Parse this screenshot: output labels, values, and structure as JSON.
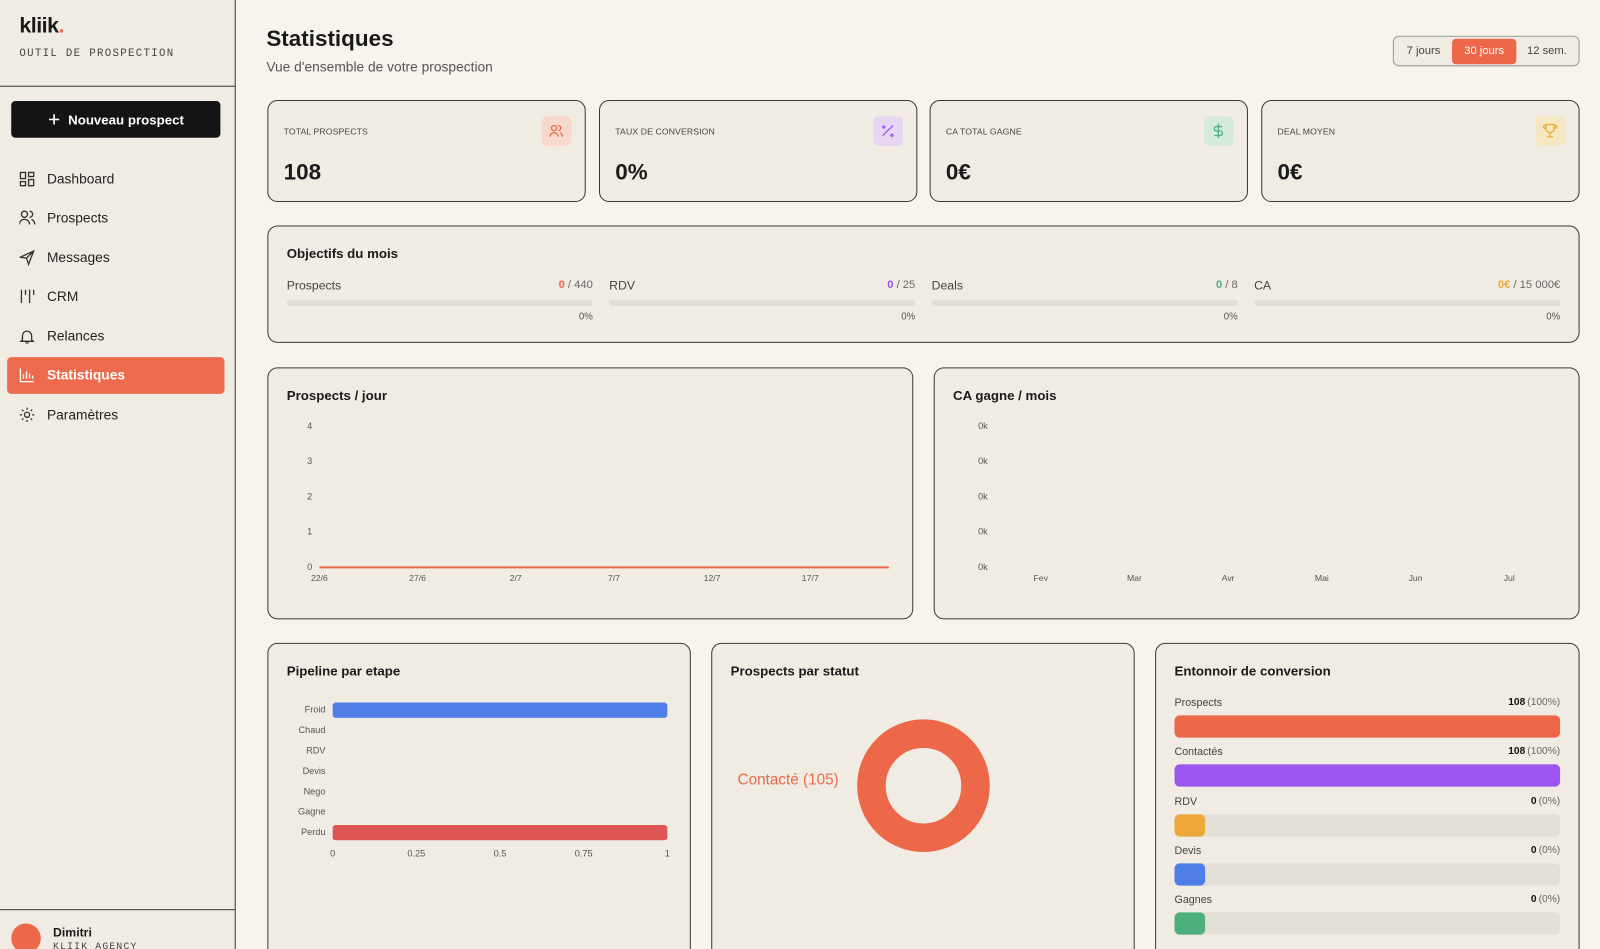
{
  "sidebar": {
    "logo": "kliik",
    "logo_dot": ".",
    "tagline": "OUTIL DE PROSPECTION",
    "new_button": "Nouveau prospect",
    "nav": [
      "Dashboard",
      "Prospects",
      "Messages",
      "CRM",
      "Relances",
      "Statistiques",
      "Paramètres"
    ],
    "active_nav": 5,
    "user": {
      "name": "Dimitri",
      "org": "KLIIK AGENCY"
    }
  },
  "header": {
    "title": "Statistiques",
    "subtitle": "Vue d'ensemble de votre prospection",
    "periods": [
      "7 jours",
      "30 jours",
      "12 sem."
    ],
    "active_period": 1
  },
  "kpis": [
    {
      "label": "TOTAL PROSPECTS",
      "value": "108"
    },
    {
      "label": "TAUX DE CONVERSION",
      "value": "0%"
    },
    {
      "label": "CA TOTAL GAGNE",
      "value": "0€"
    },
    {
      "label": "DEAL MOYEN",
      "value": "0€"
    }
  ],
  "goals": {
    "title": "Objectifs du mois",
    "items": [
      {
        "label": "Prospects",
        "current": "0",
        "target": "/ 440",
        "progress": 0,
        "progress_label": "0%",
        "color": "#ec6849"
      },
      {
        "label": "RDV",
        "current": "0",
        "target": "/ 25",
        "progress": 0,
        "progress_label": "0%",
        "color": "#9b55f0"
      },
      {
        "label": "Deals",
        "current": "0",
        "target": "/ 8",
        "progress": 0,
        "progress_label": "0%",
        "color": "#4caf7d"
      },
      {
        "label": "CA",
        "current": "0€",
        "target": "/ 15 000€",
        "progress": 0,
        "progress_label": "0%",
        "color": "#eea83a"
      }
    ]
  },
  "chart_data": [
    {
      "type": "line",
      "title": "Prospects / jour",
      "categories": [
        "22/6",
        null,
        null,
        null,
        null,
        "27/6",
        null,
        null,
        null,
        null,
        "2/7",
        null,
        null,
        null,
        null,
        "7/7",
        null,
        null,
        null,
        null,
        "12/7",
        null,
        null,
        null,
        null,
        "17/7",
        null,
        null,
        null,
        null
      ],
      "values": [
        0,
        0,
        0,
        0,
        0,
        0,
        0,
        0,
        0,
        0,
        0,
        0,
        0,
        0,
        0,
        0,
        0,
        0,
        0,
        0,
        0,
        0,
        0,
        0,
        0,
        0,
        0,
        0,
        0,
        0
      ],
      "color": "#ec6849",
      "ylim": [
        0,
        4
      ],
      "yticks": [
        0,
        1,
        2,
        3,
        4
      ]
    },
    {
      "type": "bar",
      "title": "CA gagne / mois",
      "categories": [
        "Fev",
        "Mar",
        "Avr",
        "Mai",
        "Jun",
        "Jul"
      ],
      "values": [
        0,
        0,
        0,
        0,
        0,
        0
      ],
      "color": "#ec6849",
      "ylim": [
        0,
        4
      ],
      "yticks": [
        {
          "value": 0,
          "label": "0k"
        },
        {
          "value": 1,
          "label": "0k"
        },
        {
          "value": 2,
          "label": "0k"
        },
        {
          "value": 3,
          "label": "0k"
        },
        {
          "value": 4,
          "label": "0k"
        }
      ]
    },
    {
      "type": "hbar",
      "title": "Pipeline par etape",
      "categories": [
        "Froid",
        "Chaud",
        "RDV",
        "Devis",
        "Nego",
        "Gagne",
        "Perdu"
      ],
      "values": [
        1,
        0,
        0,
        0,
        0,
        0,
        1
      ],
      "colors": [
        "#4f7de8",
        "#ec6849",
        "#9b55f0",
        "#eea83a",
        "#e8c23a",
        "#4caf7d",
        "#e05454"
      ],
      "xlim": [
        0,
        1
      ],
      "xticks": [
        0,
        0.25,
        0.5,
        0.75,
        1
      ]
    },
    {
      "type": "donut",
      "title": "Prospects par statut",
      "categories": [
        "Contacté"
      ],
      "values": [
        105
      ],
      "value_labels": [
        "Contacté (105)"
      ],
      "colors": [
        "#ec6849"
      ]
    },
    {
      "type": "funnel",
      "title": "Entonnoir de conversion",
      "categories": [
        "Prospects",
        "Contactés",
        "RDV",
        "Devis",
        "Gagnes"
      ],
      "values": [
        108,
        108,
        0,
        0,
        0
      ],
      "shares": [
        100,
        100,
        0,
        0,
        0
      ],
      "share_labels": [
        "(100%)",
        "(100%)",
        "(0%)",
        "(0%)",
        "(0%)"
      ],
      "colors": [
        "#ec6849",
        "#9b55f0",
        "#eea83a",
        "#4f7de8",
        "#4caf7d"
      ]
    }
  ]
}
